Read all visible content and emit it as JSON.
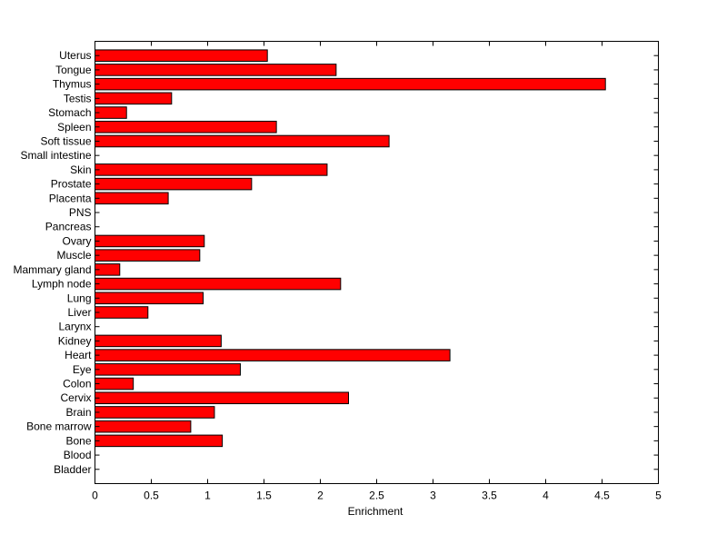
{
  "chart_data": {
    "type": "bar",
    "orientation": "horizontal",
    "categories": [
      "Uterus",
      "Tongue",
      "Thymus",
      "Testis",
      "Stomach",
      "Spleen",
      "Soft tissue",
      "Small intestine",
      "Skin",
      "Prostate",
      "Placenta",
      "PNS",
      "Pancreas",
      "Ovary",
      "Muscle",
      "Mammary gland",
      "Lymph node",
      "Lung",
      "Liver",
      "Larynx",
      "Kidney",
      "Heart",
      "Eye",
      "Colon",
      "Cervix",
      "Brain",
      "Bone marrow",
      "Bone",
      "Blood",
      "Bladder"
    ],
    "values": [
      1.53,
      2.14,
      4.53,
      0.68,
      0.28,
      1.61,
      2.61,
      0,
      2.06,
      1.39,
      0.65,
      0,
      0,
      0.97,
      0.93,
      0.22,
      2.18,
      0.96,
      0.47,
      0,
      1.12,
      3.15,
      1.29,
      0.34,
      2.25,
      1.06,
      0.85,
      1.13,
      0,
      0
    ],
    "xlabel": "Enrichment",
    "ylabel": "",
    "title": "",
    "xlim": [
      0,
      5
    ],
    "xticks": [
      0,
      0.5,
      1,
      1.5,
      2,
      2.5,
      3,
      3.5,
      4,
      4.5,
      5
    ],
    "xtick_labels": [
      "0",
      "0.5",
      "1",
      "1.5",
      "2",
      "2.5",
      "3",
      "3.5",
      "4",
      "4.5",
      "5"
    ],
    "grid": false,
    "bar_color": "#ff0000",
    "bar_edge_color": "#000000"
  }
}
